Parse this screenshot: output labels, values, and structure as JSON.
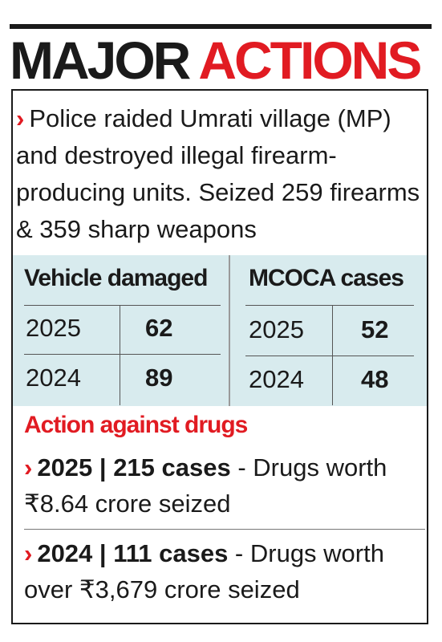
{
  "headline": {
    "word1": "MAJOR",
    "word2": "ACTIONS"
  },
  "intro": {
    "bullet": "›",
    "text": "Police raided Umrati village (MP) and destroyed illegal firearm-producing units. Seized 259 firearms & 359 sharp weapons"
  },
  "vehicle_table": {
    "title": "Vehicle damaged",
    "rows": [
      {
        "year": "2025",
        "value": "62"
      },
      {
        "year": "2024",
        "value": "89"
      }
    ]
  },
  "mcoca_table": {
    "title": "MCOCA cases",
    "rows": [
      {
        "year": "2025",
        "value": "52"
      },
      {
        "year": "2024",
        "value": "48"
      }
    ]
  },
  "drugs": {
    "title": "Action against drugs",
    "items": [
      {
        "bullet": "›",
        "bold": "2025 | 215 cases",
        "rest": " - Drugs worth ₹8.64 crore seized"
      },
      {
        "bullet": "›",
        "bold": "2024 | 111 cases",
        "rest": " - Drugs worth over ₹3,679 crore seized"
      }
    ]
  },
  "colors": {
    "accent": "#e11b22",
    "table_bg": "#d8ebee",
    "text": "#1a1a1a"
  }
}
